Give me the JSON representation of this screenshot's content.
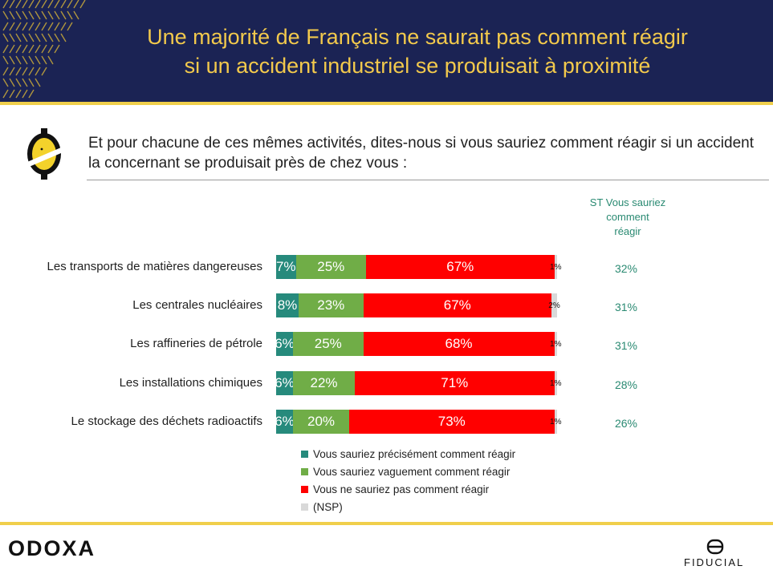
{
  "header": {
    "title_line1": "Une majorité de Français ne saurait pas comment réagir",
    "title_line2": "si un accident industriel se produisait à proximité"
  },
  "question": {
    "line1": "Et pour chacune de ces mêmes activités, dites-nous si vous sauriez comment réagir si un accident",
    "line2": "la concernant se produisait près de chez vous :"
  },
  "st_column": {
    "line1": "ST Vous sauriez",
    "line2": "comment",
    "line3": "réagir"
  },
  "colors": {
    "precisement": "#268a7c",
    "vaguement": "#70ad47",
    "pas": "#ff0000",
    "nsp": "#d9d9d9",
    "title": "#f2c94c",
    "header_bg": "#1b2354",
    "gold": "#f0cf4b"
  },
  "chart_data": {
    "type": "bar",
    "orientation": "horizontal",
    "stacked": true,
    "categories": [
      "Les transports de matières dangereuses",
      "Les centrales nucléaires",
      "Les raffineries de pétrole",
      "Les installations chimiques",
      "Le stockage des déchets radioactifs"
    ],
    "series": [
      {
        "name": "Vous sauriez précisément comment réagir",
        "values": [
          7,
          8,
          6,
          6,
          6
        ],
        "labels": [
          "7%",
          "8%",
          "6%",
          "6%",
          "6%"
        ]
      },
      {
        "name": "Vous sauriez vaguement comment réagir",
        "values": [
          25,
          23,
          25,
          22,
          20
        ],
        "labels": [
          "25%",
          "23%",
          "25%",
          "22%",
          "20%"
        ]
      },
      {
        "name": "Vous ne sauriez pas comment réagir",
        "values": [
          67,
          67,
          68,
          71,
          73
        ],
        "labels": [
          "67%",
          "67%",
          "68%",
          "71%",
          "73%"
        ]
      },
      {
        "name": "(NSP)",
        "values": [
          1,
          2,
          1,
          1,
          1
        ],
        "labels": [
          "1%",
          "2%",
          "1%",
          "1%",
          "1%"
        ]
      }
    ],
    "st_values": [
      "32%",
      "31%",
      "31%",
      "28%",
      "26%"
    ]
  },
  "footer": {
    "brand_left": "ODOXA",
    "brand_right": "FIDUCIAL"
  }
}
